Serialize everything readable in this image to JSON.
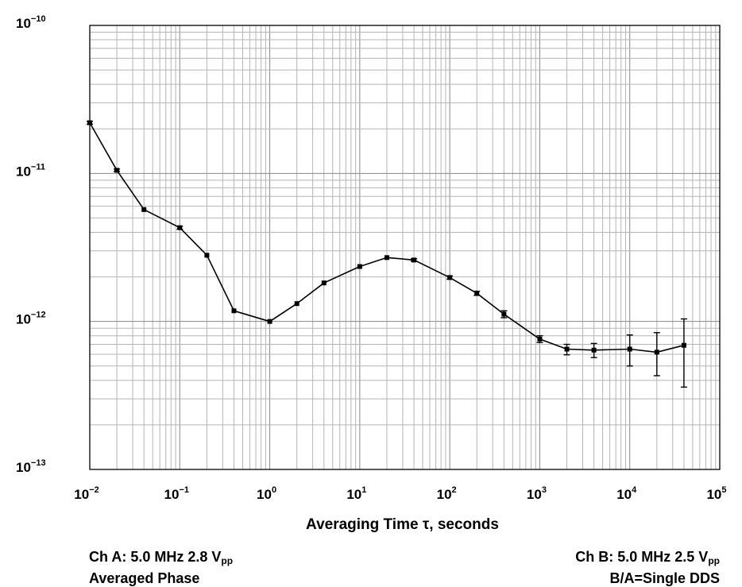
{
  "chart_data": {
    "type": "line",
    "title": "",
    "xlabel": "Averaging Time τ, seconds",
    "ylabel": "",
    "xscale": "log",
    "yscale": "log",
    "xlim": [
      0.01,
      100000
    ],
    "ylim": [
      1e-13,
      1e-10
    ],
    "grid": true,
    "x_ticks": [
      {
        "base": "10",
        "exp": "−2"
      },
      {
        "base": "10",
        "exp": "−1"
      },
      {
        "base": "10",
        "exp": "0"
      },
      {
        "base": "10",
        "exp": "1"
      },
      {
        "base": "10",
        "exp": "2"
      },
      {
        "base": "10",
        "exp": "3"
      },
      {
        "base": "10",
        "exp": "4"
      },
      {
        "base": "10",
        "exp": "5"
      }
    ],
    "y_ticks": [
      {
        "base": "10",
        "exp": "−13"
      },
      {
        "base": "10",
        "exp": "−12"
      },
      {
        "base": "10",
        "exp": "−11"
      },
      {
        "base": "10",
        "exp": "−10"
      }
    ],
    "series": [
      {
        "color": "#000000",
        "marker": "square",
        "x": [
          0.01,
          0.02,
          0.04,
          0.1,
          0.2,
          0.4,
          1,
          2,
          4,
          10,
          20,
          40,
          100,
          200,
          400,
          1000,
          2000,
          4000,
          10000,
          20000,
          40000
        ],
        "y": [
          2.2e-11,
          1.05e-11,
          5.7e-12,
          4.3e-12,
          2.8e-12,
          1.18e-12,
          1e-12,
          1.32e-12,
          1.82e-12,
          2.35e-12,
          2.7e-12,
          2.6e-12,
          1.98e-12,
          1.55e-12,
          1.12e-12,
          7.6e-13,
          6.5e-13,
          6.4e-13,
          6.5e-13,
          6.2e-13,
          6.9e-13
        ],
        "err_low": [
          2.15e-11,
          1.03e-11,
          5.6e-12,
          4.2e-12,
          2.75e-12,
          1.16e-12,
          9.85e-13,
          1.3e-12,
          1.79e-12,
          2.31e-12,
          2.65e-12,
          2.55e-12,
          1.93e-12,
          1.5e-12,
          1.06e-12,
          7.2e-13,
          5.95e-13,
          5.7e-13,
          5e-13,
          4.3e-13,
          3.6e-13
        ],
        "err_high": [
          2.25e-11,
          1.07e-11,
          5.8e-12,
          4.4e-12,
          2.85e-12,
          1.2e-12,
          1.015e-12,
          1.34e-12,
          1.85e-12,
          2.39e-12,
          2.75e-12,
          2.65e-12,
          2.03e-12,
          1.6e-12,
          1.18e-12,
          8e-13,
          7e-13,
          7.1e-13,
          8.1e-13,
          8.4e-13,
          1.04e-12
        ]
      }
    ]
  },
  "notes": {
    "left_line1_main": "Ch A: 5.0 MHz 2.8 V",
    "left_line1_sub": "pp",
    "left_line2": "Averaged Phase",
    "right_line1_main": "Ch B: 5.0 MHz 2.5 V",
    "right_line1_sub": "pp",
    "right_line2": "B/A=Single DDS"
  }
}
